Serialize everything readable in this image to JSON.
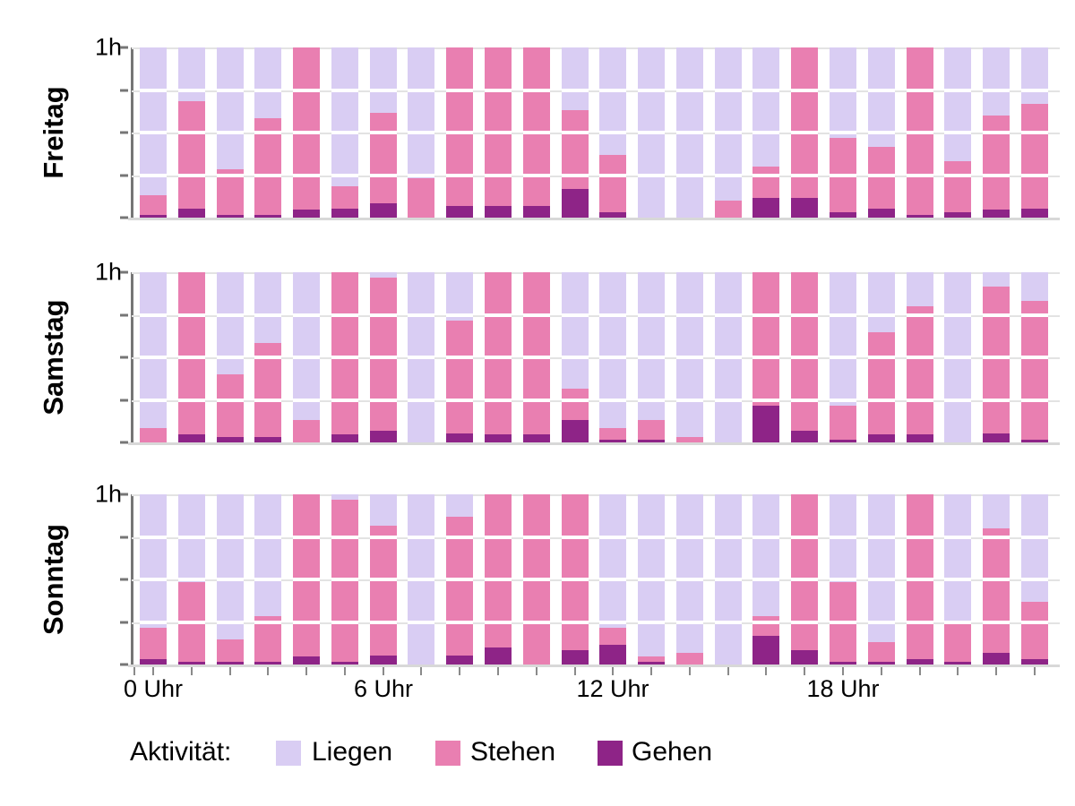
{
  "chart_data": {
    "type": "bar",
    "stacked": true,
    "orientation": "vertical",
    "unit": "minutes per hour (each column totals 60 min = 1h)",
    "x": "hour of day, 0-23, one bar per hour",
    "y_axis": {
      "top_label": "1h",
      "ticks": [
        0,
        0.25,
        0.5,
        0.75,
        1
      ],
      "grid": "quarter-hour gridlines"
    },
    "x_axis": {
      "tick_labels": [
        "0 Uhr",
        "6 Uhr",
        "12 Uhr",
        "18 Uhr"
      ],
      "tick_label_hours": [
        0,
        6,
        12,
        18
      ]
    },
    "legend": {
      "title": "Aktivität:",
      "position": "bottom",
      "entries": [
        {
          "label": "Liegen",
          "color": "#d9cdf3"
        },
        {
          "label": "Stehen",
          "color": "#e97fb1"
        },
        {
          "label": "Gehen",
          "color": "#8e2487"
        }
      ]
    },
    "panels": [
      {
        "day": "Freitag",
        "series": {
          "gehen": [
            1,
            3,
            1,
            1,
            3,
            3,
            5,
            0,
            4,
            4,
            4,
            10,
            2,
            0,
            0,
            0,
            7,
            7,
            2,
            3,
            1,
            2,
            3,
            3
          ],
          "stehen": [
            7,
            38,
            16,
            34,
            57,
            8,
            32,
            14,
            56,
            56,
            56,
            28,
            20,
            0,
            0,
            6,
            11,
            53,
            26,
            22,
            59,
            18,
            33,
            37
          ],
          "liegen": [
            52,
            19,
            43,
            25,
            0,
            49,
            23,
            46,
            0,
            0,
            0,
            22,
            38,
            60,
            60,
            54,
            42,
            0,
            32,
            35,
            0,
            40,
            24,
            20
          ]
        }
      },
      {
        "day": "Samstag",
        "series": {
          "gehen": [
            0,
            3,
            2,
            2,
            0,
            3,
            4,
            0,
            3,
            3,
            3,
            8,
            1,
            1,
            0,
            0,
            13,
            4,
            1,
            3,
            3,
            0,
            3,
            1
          ],
          "stehen": [
            5,
            57,
            22,
            33,
            8,
            57,
            54,
            0,
            40,
            57,
            57,
            11,
            4,
            7,
            2,
            0,
            47,
            56,
            12,
            36,
            45,
            0,
            52,
            49
          ],
          "liegen": [
            55,
            0,
            36,
            25,
            52,
            0,
            2,
            60,
            17,
            0,
            0,
            41,
            55,
            52,
            58,
            60,
            0,
            0,
            47,
            21,
            12,
            60,
            5,
            10
          ]
        }
      },
      {
        "day": "Sonntag",
        "series": {
          "gehen": [
            2,
            1,
            1,
            1,
            3,
            1,
            3,
            0,
            3,
            6,
            0,
            5,
            7,
            1,
            0,
            0,
            10,
            5,
            1,
            1,
            2,
            1,
            4,
            2
          ],
          "stehen": [
            11,
            28,
            8,
            16,
            57,
            57,
            46,
            0,
            49,
            54,
            60,
            55,
            6,
            2,
            4,
            0,
            7,
            55,
            28,
            7,
            58,
            14,
            44,
            20
          ],
          "liegen": [
            47,
            31,
            51,
            43,
            0,
            2,
            11,
            60,
            8,
            0,
            0,
            0,
            47,
            57,
            56,
            60,
            43,
            0,
            31,
            52,
            0,
            45,
            12,
            38
          ]
        }
      }
    ]
  }
}
